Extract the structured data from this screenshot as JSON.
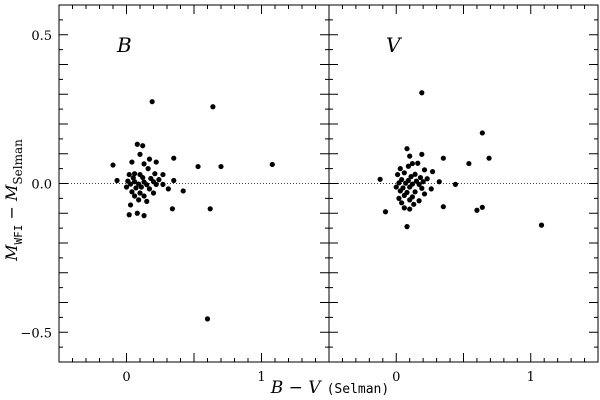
{
  "chart_data": {
    "type": "scatter",
    "layout": "two-panel",
    "xlim": [
      -0.5,
      1.5
    ],
    "ylim": [
      -0.6,
      0.6
    ],
    "grid": false,
    "zero_line": "dotted",
    "x_tick_labels": [
      {
        "value": 0,
        "label": "0"
      },
      {
        "value": 1,
        "label": "1"
      }
    ],
    "y_tick_labels": [
      {
        "value": 0.5,
        "label": "0.5"
      },
      {
        "value": 0.0,
        "label": "0.0"
      },
      {
        "value": -0.5,
        "label": "−0.5"
      }
    ],
    "xlabel": {
      "lhs": "B − V",
      "paren": "(Selman)"
    },
    "ylabel": {
      "main": "M",
      "sub1": "WFI",
      "mid": " − M",
      "sub2": "Selman"
    },
    "panels": [
      {
        "label": "B",
        "points": [
          [
            0.19,
            0.275
          ],
          [
            0.64,
            0.258
          ],
          [
            0.08,
            0.132
          ],
          [
            0.12,
            0.127
          ],
          [
            0.1,
            0.098
          ],
          [
            0.35,
            0.085
          ],
          [
            0.17,
            0.082
          ],
          [
            0.04,
            0.072
          ],
          [
            0.13,
            0.066
          ],
          [
            -0.1,
            0.062
          ],
          [
            0.22,
            0.072
          ],
          [
            0.53,
            0.057
          ],
          [
            0.7,
            0.057
          ],
          [
            1.08,
            0.064
          ],
          [
            0.16,
            0.05
          ],
          [
            0.06,
            0.033
          ],
          [
            0.02,
            0.03
          ],
          [
            0.1,
            0.03
          ],
          [
            0.21,
            0.033
          ],
          [
            0.27,
            0.03
          ],
          [
            0.05,
            0.019
          ],
          [
            0.12,
            0.02
          ],
          [
            0.18,
            0.017
          ],
          [
            0.24,
            0.013
          ],
          [
            -0.07,
            0.01
          ],
          [
            0.01,
            0.008
          ],
          [
            0.06,
            0.006
          ],
          [
            0.13,
            0.005
          ],
          [
            0.2,
            0.006
          ],
          [
            0.35,
            0.01
          ],
          [
            0.03,
            -0.002
          ],
          [
            0.09,
            -0.002
          ],
          [
            0.15,
            -0.004
          ],
          [
            0.22,
            -0.003
          ],
          [
            0.27,
            -0.003
          ],
          [
            0.0,
            -0.012
          ],
          [
            0.07,
            -0.015
          ],
          [
            0.11,
            -0.012
          ],
          [
            0.17,
            -0.018
          ],
          [
            0.31,
            -0.018
          ],
          [
            0.42,
            -0.025
          ],
          [
            0.04,
            -0.028
          ],
          [
            0.1,
            -0.032
          ],
          [
            0.2,
            -0.032
          ],
          [
            0.06,
            -0.042
          ],
          [
            0.13,
            -0.042
          ],
          [
            0.09,
            -0.055
          ],
          [
            0.15,
            -0.06
          ],
          [
            0.03,
            -0.072
          ],
          [
            0.34,
            -0.085
          ],
          [
            0.62,
            -0.085
          ],
          [
            0.02,
            -0.105
          ],
          [
            0.08,
            -0.1
          ],
          [
            0.13,
            -0.108
          ],
          [
            0.6,
            -0.455
          ]
        ]
      },
      {
        "label": "V",
        "points": [
          [
            0.19,
            0.305
          ],
          [
            0.64,
            0.17
          ],
          [
            0.08,
            0.117
          ],
          [
            0.19,
            0.098
          ],
          [
            0.1,
            0.092
          ],
          [
            0.69,
            0.085
          ],
          [
            0.35,
            0.085
          ],
          [
            0.12,
            0.067
          ],
          [
            0.54,
            0.067
          ],
          [
            0.16,
            0.068
          ],
          [
            0.09,
            0.058
          ],
          [
            0.03,
            0.05
          ],
          [
            0.21,
            0.046
          ],
          [
            0.27,
            0.04
          ],
          [
            0.06,
            0.036
          ],
          [
            0.14,
            0.031
          ],
          [
            0.01,
            0.03
          ],
          [
            0.11,
            0.023
          ],
          [
            0.18,
            0.02
          ],
          [
            0.23,
            0.016
          ],
          [
            -0.12,
            0.014
          ],
          [
            0.04,
            0.013
          ],
          [
            0.09,
            0.01
          ],
          [
            0.15,
            0.008
          ],
          [
            0.2,
            0.006
          ],
          [
            0.32,
            0.006
          ],
          [
            0.02,
            0.002
          ],
          [
            0.07,
            0.001
          ],
          [
            0.12,
            -0.002
          ],
          [
            0.17,
            -0.003
          ],
          [
            0.44,
            -0.003
          ],
          [
            0.0,
            -0.012
          ],
          [
            0.05,
            -0.015
          ],
          [
            0.1,
            -0.012
          ],
          [
            0.19,
            -0.016
          ],
          [
            0.26,
            -0.018
          ],
          [
            0.03,
            -0.025
          ],
          [
            0.08,
            -0.03
          ],
          [
            0.14,
            -0.028
          ],
          [
            0.21,
            -0.035
          ],
          [
            0.06,
            -0.04
          ],
          [
            0.12,
            -0.045
          ],
          [
            0.02,
            -0.05
          ],
          [
            0.1,
            -0.055
          ],
          [
            0.17,
            -0.058
          ],
          [
            0.04,
            -0.065
          ],
          [
            0.13,
            -0.07
          ],
          [
            0.35,
            -0.078
          ],
          [
            0.06,
            -0.082
          ],
          [
            0.1,
            -0.086
          ],
          [
            0.64,
            -0.08
          ],
          [
            0.6,
            -0.09
          ],
          [
            -0.08,
            -0.095
          ],
          [
            0.08,
            -0.145
          ],
          [
            1.08,
            -0.14
          ]
        ]
      }
    ]
  }
}
